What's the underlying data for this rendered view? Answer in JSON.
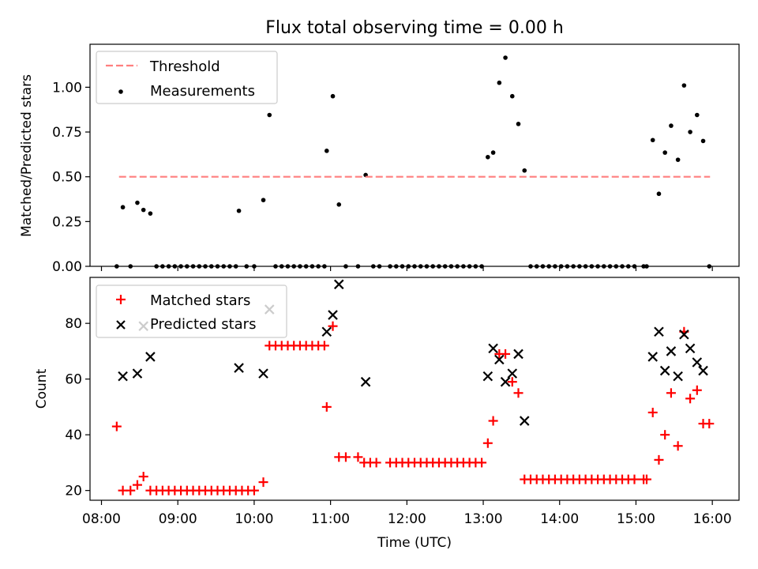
{
  "title": "Flux total observing time = 0.00 h",
  "colors": {
    "threshold": "#ff7f7f",
    "measurement": "#000000",
    "matched": "#ff0000",
    "predicted": "#000000"
  },
  "chart_data": [
    {
      "type": "scatter",
      "panel": "top",
      "ylabel": "Matched/Predicted stars",
      "xlim": [
        7.85,
        16.35
      ],
      "ylim": [
        0,
        1.24
      ],
      "yticks": [
        "0.00",
        "0.25",
        "0.50",
        "0.75",
        "1.00"
      ],
      "grid": false,
      "legend_position": "upper-left",
      "legend": [
        "Threshold",
        "Measurements"
      ],
      "threshold": {
        "name": "Threshold",
        "x": [
          8.23,
          15.97
        ],
        "y": 0.5
      },
      "series": [
        {
          "name": "Measurements",
          "points": [
            [
              8.2,
              0
            ],
            [
              8.28,
              0.33
            ],
            [
              8.38,
              0
            ],
            [
              8.47,
              0.355
            ],
            [
              8.55,
              0.315
            ],
            [
              8.64,
              0.295
            ],
            [
              8.72,
              0
            ],
            [
              8.8,
              0
            ],
            [
              8.88,
              0
            ],
            [
              8.96,
              0
            ],
            [
              9.04,
              0
            ],
            [
              9.12,
              0
            ],
            [
              9.2,
              0
            ],
            [
              9.28,
              0
            ],
            [
              9.36,
              0
            ],
            [
              9.44,
              0
            ],
            [
              9.52,
              0
            ],
            [
              9.6,
              0
            ],
            [
              9.68,
              0
            ],
            [
              9.76,
              0
            ],
            [
              9.8,
              0.31
            ],
            [
              9.9,
              0
            ],
            [
              10.0,
              0
            ],
            [
              10.12,
              0.37
            ],
            [
              10.2,
              0.845
            ],
            [
              10.28,
              0
            ],
            [
              10.36,
              0
            ],
            [
              10.44,
              0
            ],
            [
              10.52,
              0
            ],
            [
              10.6,
              0
            ],
            [
              10.68,
              0
            ],
            [
              10.76,
              0
            ],
            [
              10.84,
              0
            ],
            [
              10.92,
              0
            ],
            [
              10.95,
              0.645
            ],
            [
              11.03,
              0.95
            ],
            [
              11.11,
              0.345
            ],
            [
              11.2,
              0
            ],
            [
              11.36,
              0
            ],
            [
              11.46,
              0.51
            ],
            [
              11.56,
              0
            ],
            [
              11.64,
              0
            ],
            [
              11.78,
              0
            ],
            [
              11.86,
              0
            ],
            [
              11.94,
              0
            ],
            [
              12.02,
              0
            ],
            [
              12.1,
              0
            ],
            [
              12.18,
              0
            ],
            [
              12.26,
              0
            ],
            [
              12.34,
              0
            ],
            [
              12.42,
              0
            ],
            [
              12.5,
              0
            ],
            [
              12.58,
              0
            ],
            [
              12.66,
              0
            ],
            [
              12.74,
              0
            ],
            [
              12.82,
              0
            ],
            [
              12.9,
              0
            ],
            [
              12.98,
              0
            ],
            [
              13.06,
              0.61
            ],
            [
              13.13,
              0.635
            ],
            [
              13.21,
              1.025
            ],
            [
              13.29,
              1.165
            ],
            [
              13.38,
              0.95
            ],
            [
              13.46,
              0.795
            ],
            [
              13.54,
              0.535
            ],
            [
              13.62,
              0
            ],
            [
              13.7,
              0
            ],
            [
              13.78,
              0
            ],
            [
              13.86,
              0
            ],
            [
              13.94,
              0
            ],
            [
              14.02,
              0
            ],
            [
              14.1,
              0
            ],
            [
              14.18,
              0
            ],
            [
              14.26,
              0
            ],
            [
              14.34,
              0
            ],
            [
              14.42,
              0
            ],
            [
              14.5,
              0
            ],
            [
              14.58,
              0
            ],
            [
              14.66,
              0
            ],
            [
              14.74,
              0
            ],
            [
              14.82,
              0
            ],
            [
              14.9,
              0
            ],
            [
              14.98,
              0
            ],
            [
              15.1,
              0
            ],
            [
              15.14,
              0
            ],
            [
              15.22,
              0.705
            ],
            [
              15.3,
              0.405
            ],
            [
              15.38,
              0.635
            ],
            [
              15.46,
              0.785
            ],
            [
              15.55,
              0.595
            ],
            [
              15.63,
              1.01
            ],
            [
              15.71,
              0.75
            ],
            [
              15.8,
              0.845
            ],
            [
              15.88,
              0.7
            ],
            [
              15.96,
              0
            ]
          ]
        }
      ]
    },
    {
      "type": "scatter",
      "panel": "bottom",
      "xlabel": "Time (UTC)",
      "ylabel": "Count",
      "xlim": [
        7.85,
        16.35
      ],
      "ylim": [
        16.5,
        96.5
      ],
      "xticks": [
        "08:00",
        "09:00",
        "10:00",
        "11:00",
        "12:00",
        "13:00",
        "14:00",
        "15:00",
        "16:00"
      ],
      "xtick_values": [
        8,
        9,
        10,
        11,
        12,
        13,
        14,
        15,
        16
      ],
      "yticks": [
        "20",
        "40",
        "60",
        "80"
      ],
      "ytick_values": [
        20,
        40,
        60,
        80
      ],
      "grid": false,
      "legend_position": "upper-left",
      "legend": [
        "Matched stars",
        "Predicted stars"
      ],
      "series": [
        {
          "name": "Matched stars",
          "marker": "plus",
          "points": [
            [
              8.2,
              43
            ],
            [
              8.28,
              20
            ],
            [
              8.38,
              20
            ],
            [
              8.47,
              22
            ],
            [
              8.55,
              25
            ],
            [
              8.64,
              20
            ],
            [
              8.72,
              20
            ],
            [
              8.8,
              20
            ],
            [
              8.88,
              20
            ],
            [
              8.96,
              20
            ],
            [
              9.04,
              20
            ],
            [
              9.12,
              20
            ],
            [
              9.2,
              20
            ],
            [
              9.28,
              20
            ],
            [
              9.36,
              20
            ],
            [
              9.44,
              20
            ],
            [
              9.52,
              20
            ],
            [
              9.6,
              20
            ],
            [
              9.68,
              20
            ],
            [
              9.76,
              20
            ],
            [
              9.84,
              20
            ],
            [
              9.92,
              20
            ],
            [
              10.0,
              20
            ],
            [
              10.12,
              23
            ],
            [
              10.2,
              72
            ],
            [
              10.28,
              72
            ],
            [
              10.36,
              72
            ],
            [
              10.44,
              72
            ],
            [
              10.52,
              72
            ],
            [
              10.6,
              72
            ],
            [
              10.68,
              72
            ],
            [
              10.76,
              72
            ],
            [
              10.84,
              72
            ],
            [
              10.92,
              72
            ],
            [
              10.95,
              50
            ],
            [
              11.03,
              79
            ],
            [
              11.11,
              32
            ],
            [
              11.2,
              32
            ],
            [
              11.36,
              32
            ],
            [
              11.44,
              30
            ],
            [
              11.52,
              30
            ],
            [
              11.6,
              30
            ],
            [
              11.78,
              30
            ],
            [
              11.86,
              30
            ],
            [
              11.94,
              30
            ],
            [
              12.02,
              30
            ],
            [
              12.1,
              30
            ],
            [
              12.18,
              30
            ],
            [
              12.26,
              30
            ],
            [
              12.34,
              30
            ],
            [
              12.42,
              30
            ],
            [
              12.5,
              30
            ],
            [
              12.58,
              30
            ],
            [
              12.66,
              30
            ],
            [
              12.74,
              30
            ],
            [
              12.82,
              30
            ],
            [
              12.9,
              30
            ],
            [
              12.98,
              30
            ],
            [
              13.06,
              37
            ],
            [
              13.13,
              45
            ],
            [
              13.21,
              69
            ],
            [
              13.29,
              69
            ],
            [
              13.38,
              59
            ],
            [
              13.46,
              55
            ],
            [
              13.54,
              24
            ],
            [
              13.62,
              24
            ],
            [
              13.7,
              24
            ],
            [
              13.78,
              24
            ],
            [
              13.86,
              24
            ],
            [
              13.94,
              24
            ],
            [
              14.02,
              24
            ],
            [
              14.1,
              24
            ],
            [
              14.18,
              24
            ],
            [
              14.26,
              24
            ],
            [
              14.34,
              24
            ],
            [
              14.42,
              24
            ],
            [
              14.5,
              24
            ],
            [
              14.58,
              24
            ],
            [
              14.66,
              24
            ],
            [
              14.74,
              24
            ],
            [
              14.82,
              24
            ],
            [
              14.9,
              24
            ],
            [
              14.98,
              24
            ],
            [
              15.1,
              24
            ],
            [
              15.14,
              24
            ],
            [
              15.22,
              48
            ],
            [
              15.3,
              31
            ],
            [
              15.38,
              40
            ],
            [
              15.46,
              55
            ],
            [
              15.55,
              36
            ],
            [
              15.63,
              77
            ],
            [
              15.71,
              53
            ],
            [
              15.8,
              56
            ],
            [
              15.88,
              44
            ],
            [
              15.96,
              44
            ]
          ]
        },
        {
          "name": "Predicted stars",
          "marker": "x",
          "points": [
            [
              8.28,
              61
            ],
            [
              8.47,
              62
            ],
            [
              8.55,
              79
            ],
            [
              8.64,
              68
            ],
            [
              9.8,
              64
            ],
            [
              10.12,
              62
            ],
            [
              10.2,
              85
            ],
            [
              10.95,
              77
            ],
            [
              11.03,
              83
            ],
            [
              11.11,
              94
            ],
            [
              11.46,
              59
            ],
            [
              13.06,
              61
            ],
            [
              13.13,
              71
            ],
            [
              13.21,
              67
            ],
            [
              13.29,
              59
            ],
            [
              13.38,
              62
            ],
            [
              13.46,
              69
            ],
            [
              13.54,
              45
            ],
            [
              15.22,
              68
            ],
            [
              15.3,
              77
            ],
            [
              15.38,
              63
            ],
            [
              15.46,
              70
            ],
            [
              15.55,
              61
            ],
            [
              15.63,
              76
            ],
            [
              15.71,
              71
            ],
            [
              15.8,
              66
            ],
            [
              15.88,
              63
            ]
          ]
        }
      ]
    }
  ]
}
